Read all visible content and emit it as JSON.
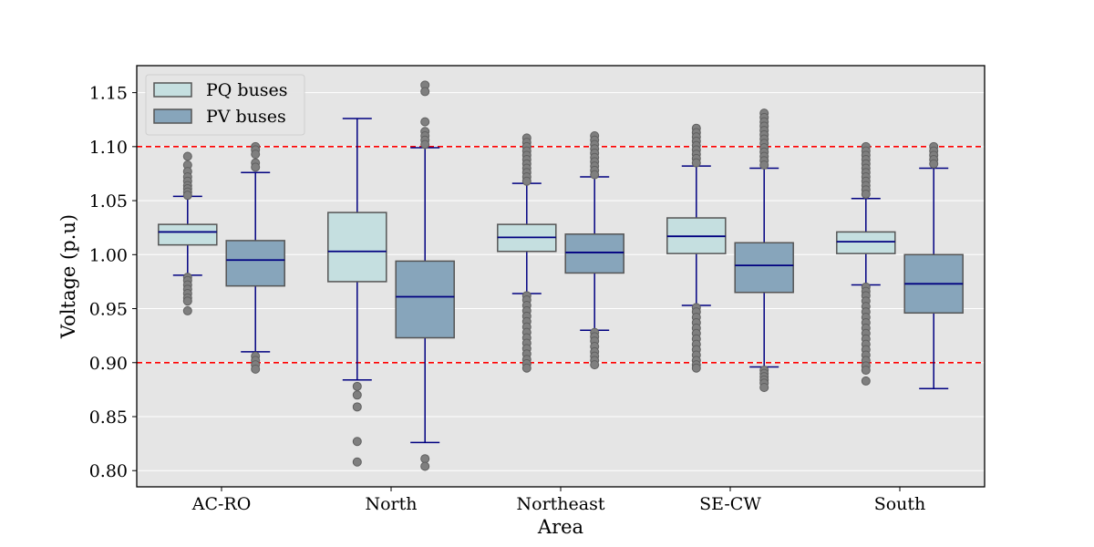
{
  "chart_data": {
    "type": "box",
    "xlabel": "Area",
    "ylabel": "Voltage (p.u)",
    "ylim": [
      0.785,
      1.175
    ],
    "yticks": [
      "0.80",
      "0.85",
      "0.90",
      "0.95",
      "1.00",
      "1.05",
      "1.10",
      "1.15"
    ],
    "ytick_values": [
      0.8,
      0.85,
      0.9,
      0.95,
      1.0,
      1.05,
      1.1,
      1.15
    ],
    "grid": "horizontal",
    "legend_position": "top-left",
    "categories": [
      "AC-RO",
      "North",
      "Northeast",
      "SE-CW",
      "South"
    ],
    "reference_lines": [
      1.1,
      0.9
    ],
    "colors": {
      "background": "#e5e5e5",
      "pq_fill": "#c5dfe0",
      "pv_fill": "#87a5bb",
      "box_edge": "#555555",
      "median_whisker": "#000080",
      "outlier": "#7f7f7f",
      "reference_line": "#ff0000",
      "grid": "#ffffff"
    },
    "series": [
      {
        "name": "PQ buses",
        "color": "#c5dfe0",
        "boxes": [
          {
            "q1": 1.009,
            "median": 1.021,
            "q3": 1.028,
            "whisker_low": 0.981,
            "whisker_high": 1.054,
            "outliers": [
              1.091,
              1.083,
              1.077,
              1.072,
              1.068,
              1.064,
              1.061,
              1.058,
              1.055,
              0.979,
              0.976,
              0.972,
              0.968,
              0.964,
              0.96,
              0.957,
              0.948
            ]
          },
          {
            "q1": 0.975,
            "median": 1.003,
            "q3": 1.039,
            "whisker_low": 0.884,
            "whisker_high": 1.126,
            "outliers": [
              0.878,
              0.87,
              0.859,
              0.827,
              0.808
            ]
          },
          {
            "q1": 1.003,
            "median": 1.016,
            "q3": 1.028,
            "whisker_low": 0.964,
            "whisker_high": 1.066,
            "outliers": [
              1.108,
              1.104,
              1.1,
              1.096,
              1.092,
              1.088,
              1.084,
              1.08,
              1.076,
              1.072,
              1.068,
              0.962,
              0.958,
              0.953,
              0.948,
              0.943,
              0.938,
              0.933,
              0.928,
              0.923,
              0.918,
              0.913,
              0.908,
              0.903,
              0.899,
              0.895
            ]
          },
          {
            "q1": 1.001,
            "median": 1.017,
            "q3": 1.034,
            "whisker_low": 0.953,
            "whisker_high": 1.082,
            "outliers": [
              1.117,
              1.113,
              1.109,
              1.105,
              1.101,
              1.097,
              1.093,
              1.089,
              1.085,
              0.951,
              0.947,
              0.942,
              0.937,
              0.932,
              0.927,
              0.922,
              0.917,
              0.912,
              0.907,
              0.902,
              0.898,
              0.895
            ]
          },
          {
            "q1": 1.001,
            "median": 1.012,
            "q3": 1.021,
            "whisker_low": 0.972,
            "whisker_high": 1.052,
            "outliers": [
              1.1,
              1.096,
              1.092,
              1.088,
              1.084,
              1.08,
              1.076,
              1.072,
              1.068,
              1.064,
              1.06,
              1.056,
              0.97,
              0.966,
              0.962,
              0.957,
              0.952,
              0.947,
              0.942,
              0.937,
              0.932,
              0.927,
              0.922,
              0.917,
              0.912,
              0.907,
              0.902,
              0.897,
              0.893,
              0.883
            ]
          }
        ]
      },
      {
        "name": "PV buses",
        "color": "#87a5bb",
        "boxes": [
          {
            "q1": 0.971,
            "median": 0.995,
            "q3": 1.013,
            "whisker_low": 0.91,
            "whisker_high": 1.076,
            "outliers": [
              1.1,
              1.097,
              1.093,
              1.085,
              1.081,
              0.906,
              0.902,
              0.898,
              0.894
            ]
          },
          {
            "q1": 0.923,
            "median": 0.961,
            "q3": 0.994,
            "whisker_low": 0.826,
            "whisker_high": 1.099,
            "outliers": [
              1.157,
              1.151,
              1.123,
              1.114,
              1.11,
              1.106,
              1.102,
              0.811,
              0.804
            ]
          },
          {
            "q1": 0.983,
            "median": 1.002,
            "q3": 1.019,
            "whisker_low": 0.93,
            "whisker_high": 1.072,
            "outliers": [
              1.11,
              1.106,
              1.102,
              1.098,
              1.094,
              1.09,
              1.086,
              1.082,
              1.078,
              1.074,
              0.928,
              0.924,
              0.92,
              0.915,
              0.91,
              0.906,
              0.902,
              0.898
            ]
          },
          {
            "q1": 0.965,
            "median": 0.99,
            "q3": 1.011,
            "whisker_low": 0.896,
            "whisker_high": 1.08,
            "outliers": [
              1.131,
              1.127,
              1.123,
              1.119,
              1.115,
              1.111,
              1.107,
              1.103,
              1.099,
              1.095,
              1.091,
              1.087,
              1.083,
              0.893,
              0.89,
              0.887,
              0.884,
              0.881,
              0.877
            ]
          },
          {
            "q1": 0.946,
            "median": 0.973,
            "q3": 1.0,
            "whisker_low": 0.876,
            "whisker_high": 1.08,
            "outliers": [
              1.1,
              1.096,
              1.092,
              1.088,
              1.084
            ]
          }
        ]
      }
    ]
  }
}
